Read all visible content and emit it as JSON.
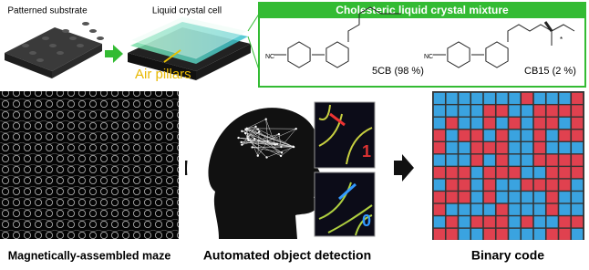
{
  "top": {
    "substrate_label": "Patterned substrate",
    "cell_label": "Liquid crystal cell",
    "air_pillars": "Air pillars",
    "mixture": {
      "title": "Cholesteric liquid crystal mixture",
      "chiral_mark": "*",
      "compounds": [
        {
          "group": "NC",
          "label": "5CB (98 %)"
        },
        {
          "group": "NC",
          "label": "CB15 (2 %)"
        }
      ]
    }
  },
  "detection": {
    "one": "1",
    "zero": "0"
  },
  "captions": {
    "maze": "Magnetically-assembled maze",
    "detection": "Automated object detection",
    "binary": "Binary code"
  }
}
